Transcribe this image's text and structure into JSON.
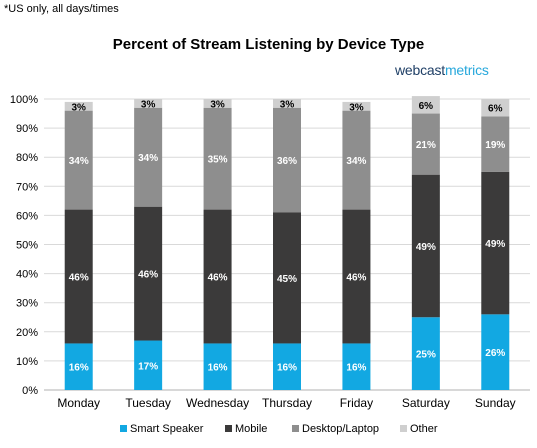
{
  "note": "*US only, all days/times",
  "logo": {
    "part1": "webcast",
    "part2": "metrics"
  },
  "chart_data": {
    "type": "bar",
    "stacked": true,
    "title": "Percent of Stream Listening by Device Type",
    "xlabel": "",
    "ylabel": "",
    "ylim": [
      0,
      100
    ],
    "yticks": [
      "0%",
      "10%",
      "20%",
      "30%",
      "40%",
      "50%",
      "60%",
      "70%",
      "80%",
      "90%",
      "100%"
    ],
    "categories": [
      "Monday",
      "Tuesday",
      "Wednesday",
      "Thursday",
      "Friday",
      "Saturday",
      "Sunday"
    ],
    "legend_position": "bottom",
    "series": [
      {
        "name": "Smart Speaker",
        "color": "#12a8e2",
        "values": [
          16,
          17,
          16,
          16,
          16,
          25,
          26
        ],
        "labels": [
          "16%",
          "17%",
          "16%",
          "16%",
          "16%",
          "25%",
          "26%"
        ]
      },
      {
        "name": "Mobile",
        "color": "#3b3a3a",
        "values": [
          46,
          46,
          46,
          45,
          46,
          49,
          49
        ],
        "labels": [
          "46%",
          "46%",
          "46%",
          "45%",
          "46%",
          "49%",
          "49%"
        ]
      },
      {
        "name": "Desktop/Laptop",
        "color": "#8e8e8e",
        "values": [
          34,
          34,
          35,
          36,
          34,
          21,
          19
        ],
        "labels": [
          "34%",
          "34%",
          "35%",
          "36%",
          "34%",
          "21%",
          "19%"
        ]
      },
      {
        "name": "Other",
        "color": "#cfcfcf",
        "values": [
          3,
          3,
          3,
          3,
          3,
          6,
          6
        ],
        "labels": [
          "3%",
          "3%",
          "3%",
          "3%",
          "3%",
          "6%",
          "6%"
        ]
      }
    ]
  }
}
